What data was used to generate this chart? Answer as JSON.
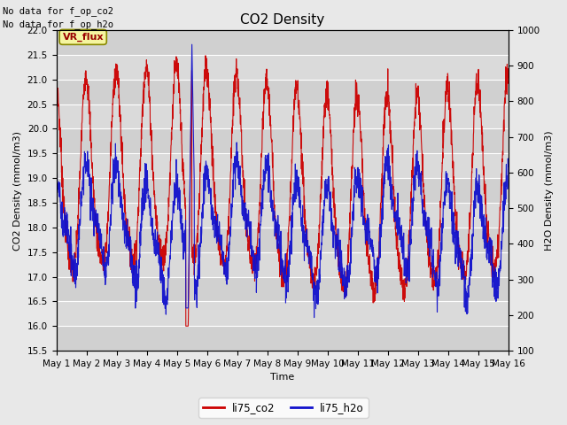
{
  "title": "CO2 Density",
  "xlabel": "Time",
  "ylabel_left": "CO2 Density (mmol/m3)",
  "ylabel_right": "H2O Density (mmol/m3)",
  "text_no_data_1": "No data for f_op_co2",
  "text_no_data_2": "No data for f_op_h2o",
  "vr_flux_label": "VR_flux",
  "ylim_left": [
    15.5,
    22.0
  ],
  "ylim_right": [
    100,
    1000
  ],
  "yticks_left": [
    15.5,
    16.0,
    16.5,
    17.0,
    17.5,
    18.0,
    18.5,
    19.0,
    19.5,
    20.0,
    20.5,
    21.0,
    21.5,
    22.0
  ],
  "yticks_right": [
    100,
    200,
    300,
    400,
    500,
    600,
    700,
    800,
    900,
    1000
  ],
  "xtick_labels": [
    "May 1",
    "May 2",
    "May 3",
    "May 4",
    "May 5",
    "May 6",
    "May 7",
    "May 8",
    "May 9",
    "May 10",
    "May 11",
    "May 12",
    "May 13",
    "May 14",
    "May 15",
    "May 16"
  ],
  "legend_entries": [
    "li75_co2",
    "li75_h2o"
  ],
  "legend_colors": [
    "#cc0000",
    "#1111cc"
  ],
  "fig_bg_color": "#e8e8e8",
  "plot_bg_color": "#d8d8d8",
  "grid_color": "#ffffff",
  "co2_color": "#cc0000",
  "h2o_color": "#1111cc",
  "title_fontsize": 11,
  "axis_label_fontsize": 8,
  "tick_fontsize": 7.5,
  "annotation_fontsize": 7.5
}
